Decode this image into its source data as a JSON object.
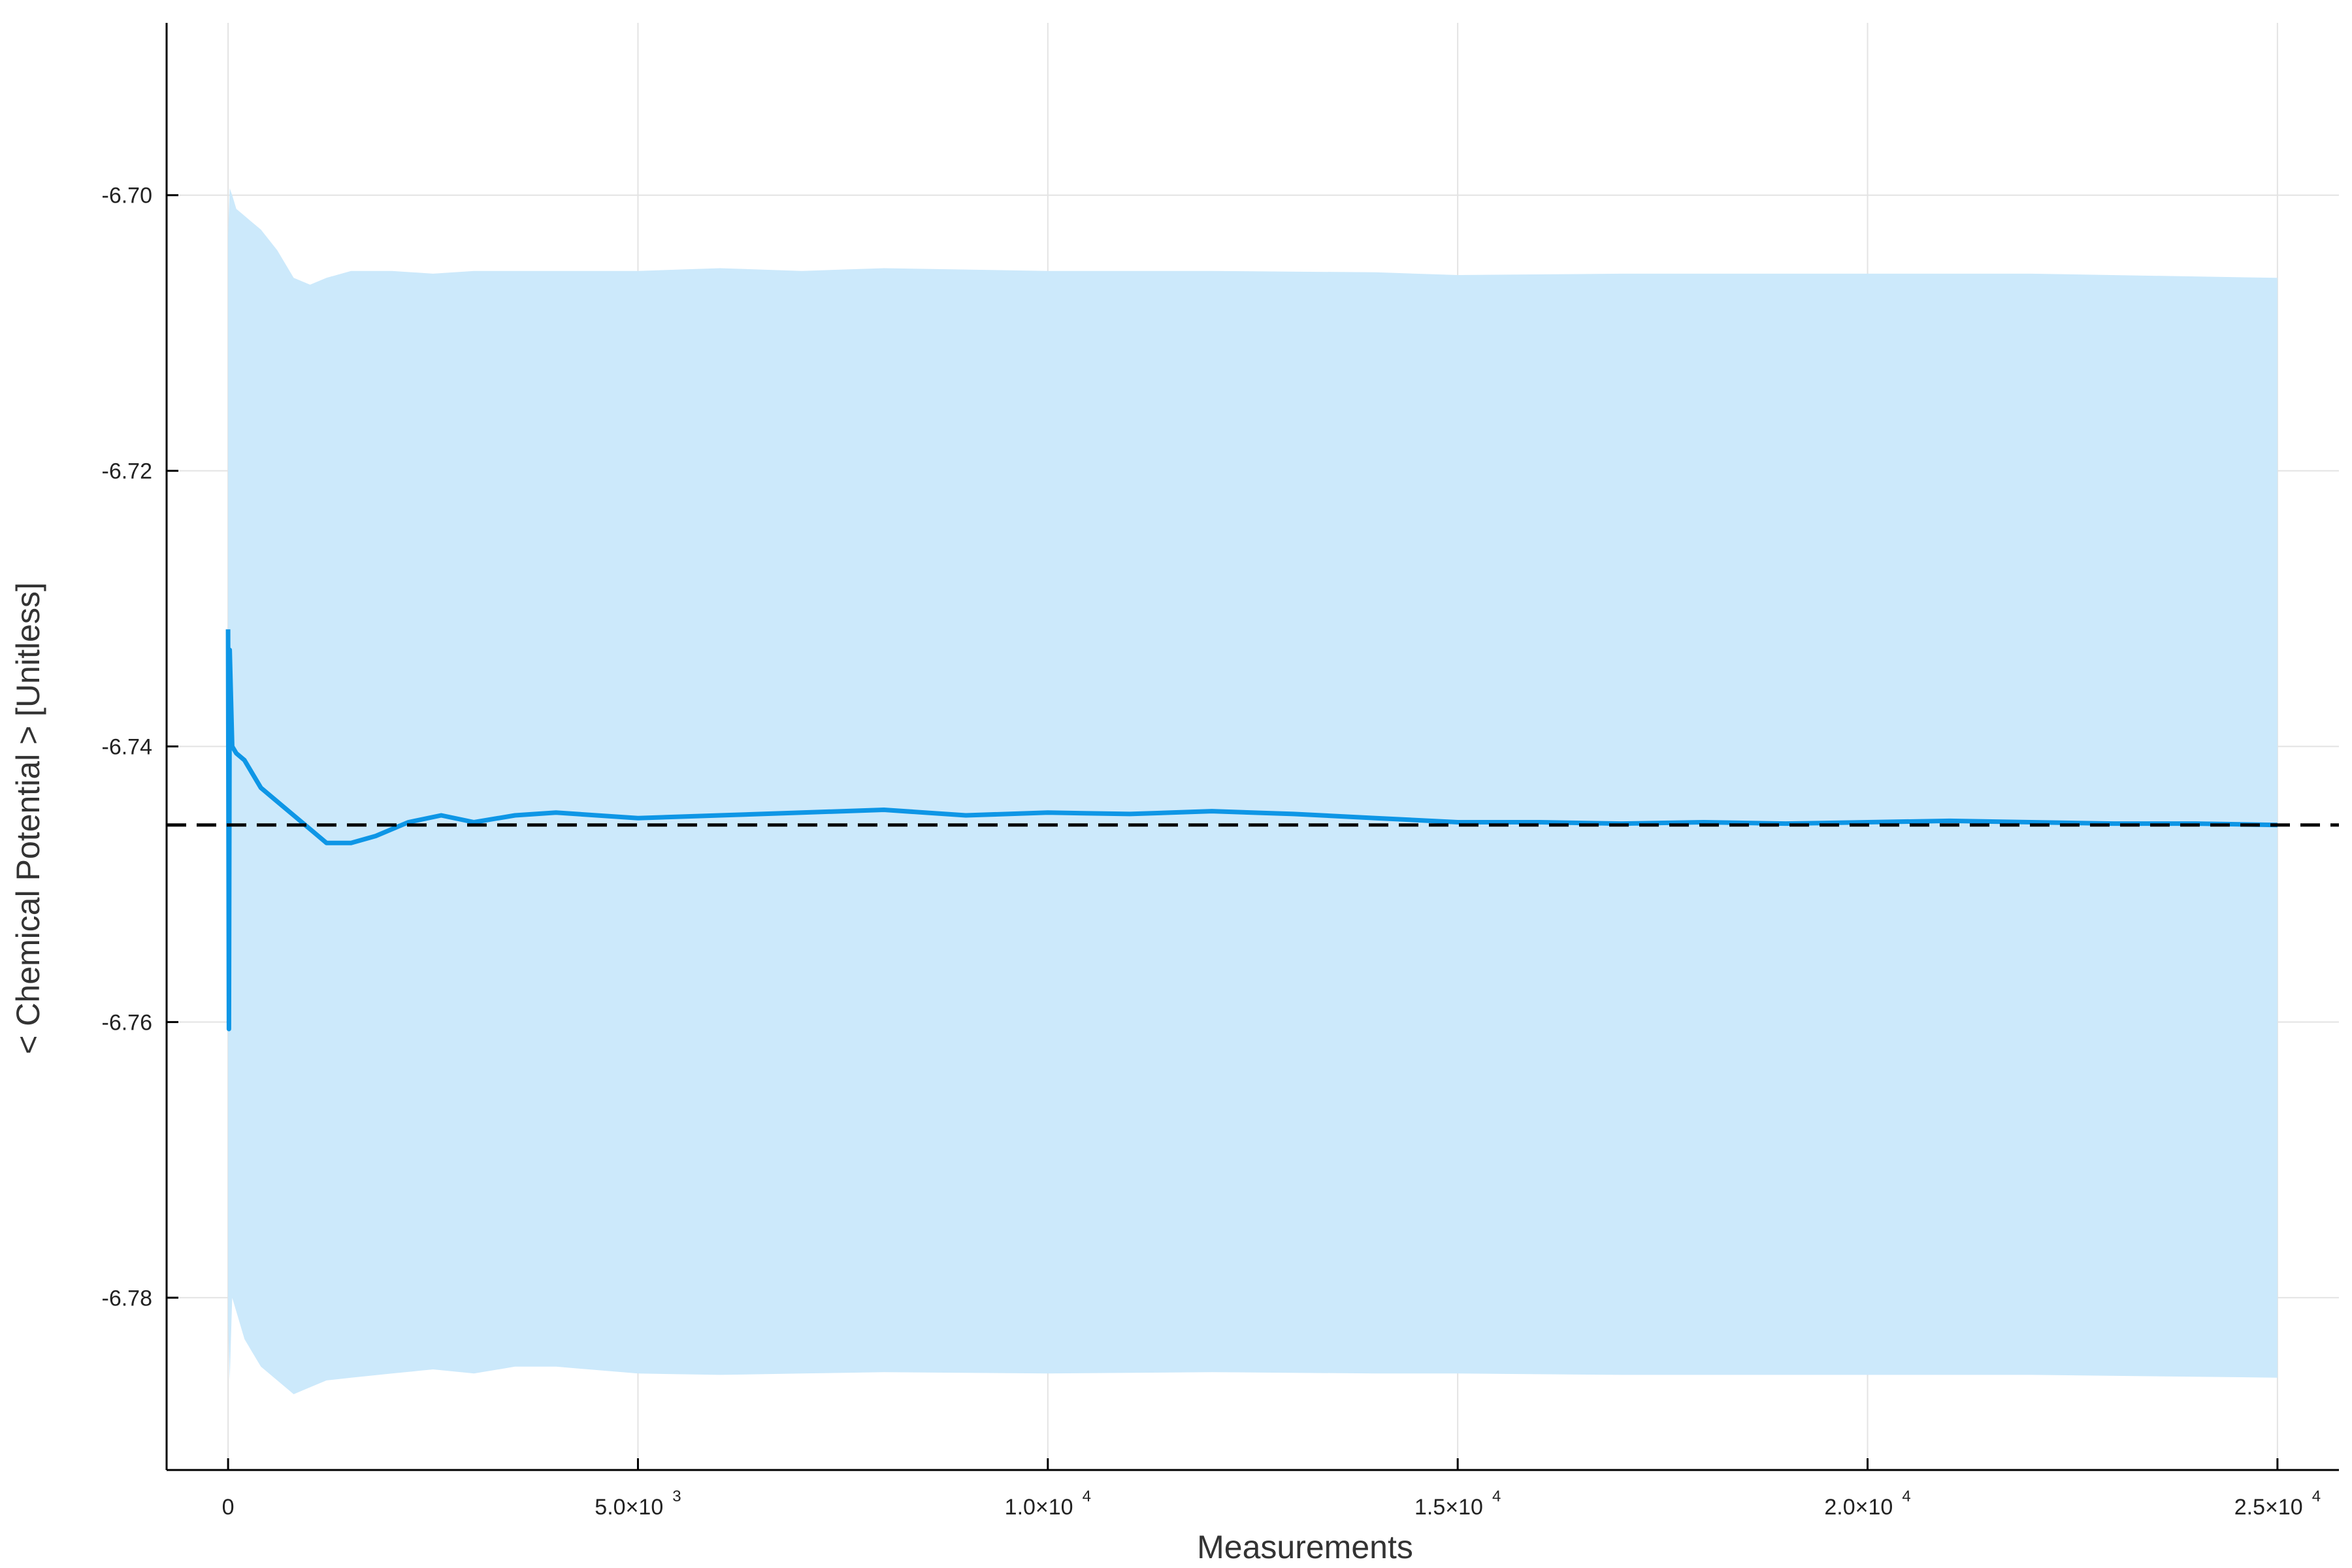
{
  "chart_data": {
    "type": "line",
    "title": "",
    "xlabel": "Measurements",
    "ylabel": "< Chemical Potential > [Unitless]",
    "xlim": [
      -750,
      25750
    ],
    "ylim": [
      -6.7925,
      -6.6875
    ],
    "grid": true,
    "x_ticks": [
      {
        "value": 0,
        "mantissa": "0",
        "exponent": ""
      },
      {
        "value": 5000,
        "mantissa": "5.0×10",
        "exponent": "3"
      },
      {
        "value": 10000,
        "mantissa": "1.0×10",
        "exponent": "4"
      },
      {
        "value": 15000,
        "mantissa": "1.5×10",
        "exponent": "4"
      },
      {
        "value": 20000,
        "mantissa": "2.0×10",
        "exponent": "4"
      },
      {
        "value": 25000,
        "mantissa": "2.5×10",
        "exponent": "4"
      }
    ],
    "y_ticks": [
      {
        "value": -6.7,
        "label": "-6.70"
      },
      {
        "value": -6.72,
        "label": "-6.72"
      },
      {
        "value": -6.74,
        "label": "-6.74"
      },
      {
        "value": -6.76,
        "label": "-6.76"
      },
      {
        "value": -6.78,
        "label": "-6.78"
      }
    ],
    "series": [
      {
        "name": "",
        "kind": "running-mean",
        "color": "#0e96e6",
        "x": [
          0,
          10,
          20,
          50,
          100,
          200,
          300,
          400,
          600,
          800,
          1000,
          1200,
          1500,
          1800,
          2200,
          2600,
          3000,
          3500,
          4000,
          5000,
          6000,
          7000,
          8000,
          9000,
          10000,
          11000,
          12000,
          13000,
          14000,
          15000,
          16000,
          17000,
          18000,
          19000,
          20000,
          21000,
          22000,
          23000,
          24000,
          25000
        ],
        "y": [
          -6.7315,
          -6.7605,
          -6.733,
          -6.74,
          -6.7405,
          -6.741,
          -6.742,
          -6.743,
          -6.744,
          -6.745,
          -6.746,
          -6.747,
          -6.747,
          -6.7465,
          -6.7455,
          -6.745,
          -6.7455,
          -6.745,
          -6.7448,
          -6.7452,
          -6.745,
          -6.7448,
          -6.7446,
          -6.745,
          -6.7448,
          -6.7449,
          -6.7447,
          -6.7449,
          -6.7452,
          -6.7455,
          -6.7455,
          -6.7456,
          -6.7455,
          -6.7456,
          -6.7455,
          -6.7454,
          -6.7455,
          -6.7456,
          -6.7456,
          -6.7457
        ]
      }
    ],
    "band": {
      "color": "#cce9fb",
      "x": [
        0,
        20,
        50,
        100,
        200,
        300,
        400,
        600,
        800,
        1000,
        1200,
        1500,
        2000,
        2500,
        3000,
        3500,
        4000,
        5000,
        6000,
        7000,
        8000,
        10000,
        12000,
        14000,
        15000,
        17000,
        20000,
        22000,
        25000
      ],
      "upper": [
        -6.703,
        -6.6995,
        -6.7,
        -6.701,
        -6.7015,
        -6.702,
        -6.7025,
        -6.704,
        -6.706,
        -6.7065,
        -6.706,
        -6.7055,
        -6.7055,
        -6.7057,
        -6.7055,
        -6.7055,
        -6.7055,
        -6.7055,
        -6.7053,
        -6.7055,
        -6.7053,
        -6.7055,
        -6.7055,
        -6.7056,
        -6.7058,
        -6.7057,
        -6.7057,
        -6.7057,
        -6.706
      ],
      "lower": [
        -6.7815,
        -6.786,
        -6.78,
        -6.781,
        -6.783,
        -6.784,
        -6.785,
        -6.786,
        -6.787,
        -6.7865,
        -6.786,
        -6.7858,
        -6.7855,
        -6.7852,
        -6.7855,
        -6.785,
        -6.785,
        -6.7855,
        -6.7856,
        -6.7855,
        -6.7854,
        -6.7855,
        -6.7854,
        -6.7855,
        -6.7855,
        -6.7856,
        -6.7856,
        -6.7856,
        -6.7858
      ]
    },
    "reference_line": {
      "y": -6.7457,
      "style": "dashed",
      "color": "#000000"
    }
  }
}
